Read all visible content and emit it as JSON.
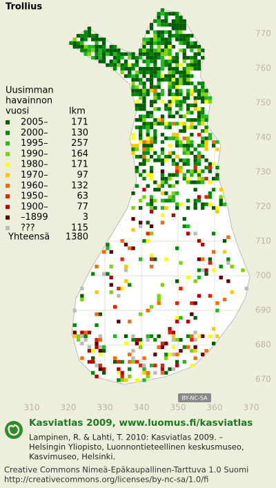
{
  "map_data": {
    "title": "Trollius",
    "legend": {
      "heading": [
        "Uusimman",
        "havainnon"
      ],
      "col_year": "vuosi",
      "col_count": "lkm",
      "rows": [
        {
          "label": "2005–",
          "count": 171,
          "color": "#005e00"
        },
        {
          "label": "2000–",
          "count": 130,
          "color": "#008a00"
        },
        {
          "label": "1995–",
          "count": 257,
          "color": "#22b822"
        },
        {
          "label": "1990–",
          "count": 164,
          "color": "#7ed400"
        },
        {
          "label": "1980–",
          "count": 171,
          "color": "#ffff00"
        },
        {
          "label": "1970–",
          "count": 97,
          "color": "#ffc800"
        },
        {
          "label": "1960–",
          "count": 132,
          "color": "#ff6a00"
        },
        {
          "label": "1950–",
          "count": 63,
          "color": "#e82000"
        },
        {
          "label": "1900–",
          "count": 77,
          "color": "#b80000"
        },
        {
          "label": "–1899",
          "count": 3,
          "color": "#5e0000"
        },
        {
          "label": "???",
          "count": 115,
          "color": "#bbbbbb"
        }
      ],
      "total_label": "Yhteensä",
      "total": 1380
    },
    "yticks": [
      670,
      680,
      690,
      700,
      710,
      720,
      730,
      740,
      750,
      760,
      770
    ],
    "xticks": [
      310,
      320,
      330,
      340,
      350,
      360,
      370
    ],
    "license_badge": "BY-NC-SA",
    "footer": {
      "site": "Kasviatlas 2009, www.luomus.fi/kasviatlas",
      "citation": [
        "Lampinen, R. & Lahti, T. 2010: Kasviatlas 2009. –",
        "Helsingin Yliopisto, Luonnontieteellinen keskusmuseo,",
        "Kasvimuseo, Helsinki."
      ],
      "license": [
        "Creative Commons Nimeä-Epäkaupallinen-Tarttuva 1.0 Suomi",
        "http://creativecommons.org/licenses/by-nc-sa/1.0/fi"
      ]
    }
  }
}
